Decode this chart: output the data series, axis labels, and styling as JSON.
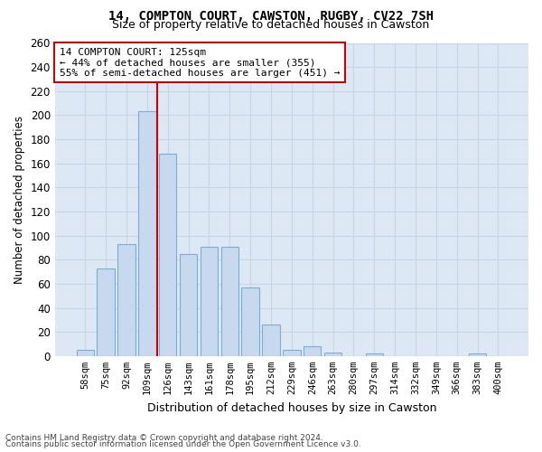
{
  "title": "14, COMPTON COURT, CAWSTON, RUGBY, CV22 7SH",
  "subtitle": "Size of property relative to detached houses in Cawston",
  "xlabel": "Distribution of detached houses by size in Cawston",
  "ylabel": "Number of detached properties",
  "bar_color": "#c8d8ee",
  "bar_edge_color": "#7aaed6",
  "grid_color": "#c8d4e8",
  "bg_color": "#dde8f4",
  "fig_color": "#ffffff",
  "categories": [
    "58sqm",
    "75sqm",
    "92sqm",
    "109sqm",
    "126sqm",
    "143sqm",
    "161sqm",
    "178sqm",
    "195sqm",
    "212sqm",
    "229sqm",
    "246sqm",
    "263sqm",
    "280sqm",
    "297sqm",
    "314sqm",
    "332sqm",
    "349sqm",
    "366sqm",
    "383sqm",
    "400sqm"
  ],
  "values": [
    5,
    73,
    93,
    203,
    168,
    85,
    91,
    91,
    57,
    26,
    5,
    8,
    3,
    0,
    2,
    0,
    0,
    0,
    0,
    2,
    0
  ],
  "vline_pos": 3.5,
  "vline_color": "#cc0000",
  "annotation_title": "14 COMPTON COURT: 125sqm",
  "annotation_line1": "← 44% of detached houses are smaller (355)",
  "annotation_line2": "55% of semi-detached houses are larger (451) →",
  "annotation_box_color": "#cc0000",
  "ylim": [
    0,
    260
  ],
  "yticks": [
    0,
    20,
    40,
    60,
    80,
    100,
    120,
    140,
    160,
    180,
    200,
    220,
    240,
    260
  ],
  "footnote1": "Contains HM Land Registry data © Crown copyright and database right 2024.",
  "footnote2": "Contains public sector information licensed under the Open Government Licence v3.0."
}
